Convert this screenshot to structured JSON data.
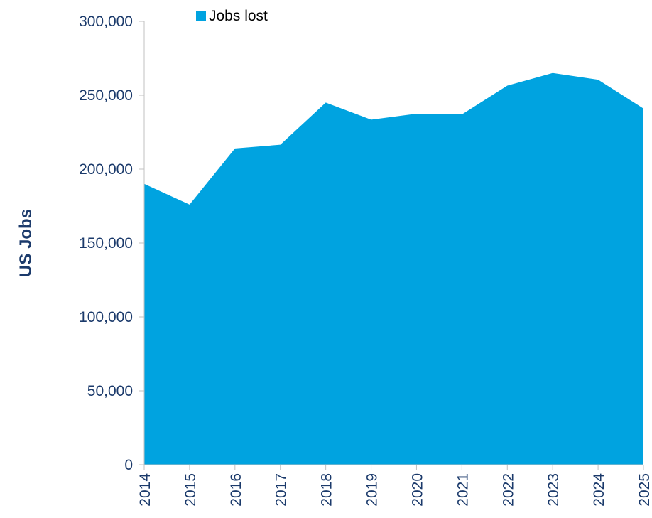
{
  "chart_data": {
    "type": "area",
    "title": "",
    "xlabel": "",
    "ylabel": "US Jobs",
    "x": [
      "2014",
      "2015",
      "2016",
      "2017",
      "2018",
      "2019",
      "2020",
      "2021",
      "2022",
      "2023",
      "2024",
      "2025"
    ],
    "series": [
      {
        "name": "Jobs lost",
        "values": [
          190000,
          176000,
          214000,
          216500,
          245000,
          233500,
          237500,
          237000,
          256500,
          265000,
          260500,
          241000
        ]
      }
    ],
    "ylim": [
      0,
      300000
    ],
    "yticks": [
      "0",
      "50,000",
      "100,000",
      "150,000",
      "200,000",
      "250,000",
      "300,000"
    ],
    "ytick_values": [
      0,
      50000,
      100000,
      150000,
      200000,
      250000,
      300000
    ],
    "grid": false,
    "legend": "top",
    "colors": {
      "series": "#00a3e0",
      "axis": "#c0c0c0",
      "text": "#1b3a6b"
    }
  }
}
